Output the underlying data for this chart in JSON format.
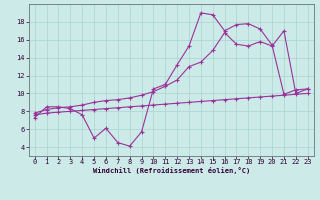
{
  "xlabel": "Windchill (Refroidissement éolien,°C)",
  "bg_color": "#cceae8",
  "line_color": "#993399",
  "grid_color": "#aad4d0",
  "x_min": 0,
  "x_max": 23,
  "y_min": 3,
  "y_max": 20,
  "yticks": [
    4,
    6,
    8,
    10,
    12,
    14,
    16,
    18
  ],
  "xticks": [
    0,
    1,
    2,
    3,
    4,
    5,
    6,
    7,
    8,
    9,
    10,
    11,
    12,
    13,
    14,
    15,
    16,
    17,
    18,
    19,
    20,
    21,
    22,
    23
  ],
  "line1_x": [
    0,
    1,
    2,
    3,
    4,
    5,
    6,
    7,
    8,
    9,
    10,
    11,
    12,
    13,
    14,
    15,
    16,
    17,
    18,
    19,
    20,
    21,
    22,
    23
  ],
  "line1_y": [
    7.3,
    8.5,
    8.5,
    8.3,
    7.6,
    5.0,
    6.1,
    4.5,
    4.1,
    5.7,
    10.5,
    11.0,
    13.2,
    15.3,
    19.0,
    18.8,
    17.0,
    17.7,
    17.8,
    17.2,
    15.4,
    9.9,
    10.4,
    10.5
  ],
  "line2_x": [
    0,
    1,
    2,
    3,
    4,
    5,
    6,
    7,
    8,
    9,
    10,
    11,
    12,
    13,
    14,
    15,
    16,
    17,
    18,
    19,
    20,
    21,
    22,
    23
  ],
  "line2_y": [
    7.8,
    8.2,
    8.4,
    8.5,
    8.7,
    9.0,
    9.2,
    9.3,
    9.5,
    9.8,
    10.2,
    10.8,
    11.5,
    13.0,
    13.5,
    14.8,
    16.8,
    15.5,
    15.3,
    15.8,
    15.3,
    17.0,
    10.0,
    10.5
  ],
  "line3_x": [
    0,
    1,
    2,
    3,
    4,
    5,
    6,
    7,
    8,
    9,
    10,
    11,
    12,
    13,
    14,
    15,
    16,
    17,
    18,
    19,
    20,
    21,
    22,
    23
  ],
  "line3_y": [
    7.6,
    7.8,
    7.9,
    8.0,
    8.1,
    8.2,
    8.3,
    8.4,
    8.5,
    8.6,
    8.7,
    8.8,
    8.9,
    9.0,
    9.1,
    9.2,
    9.3,
    9.4,
    9.5,
    9.6,
    9.7,
    9.8,
    9.9,
    10.0
  ]
}
